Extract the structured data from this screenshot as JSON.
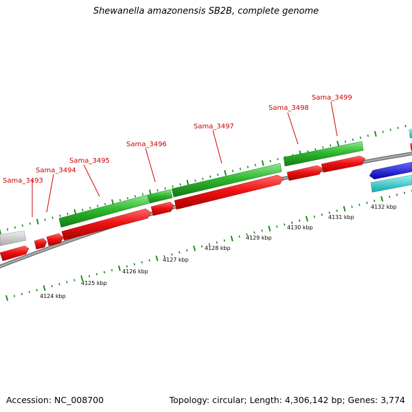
{
  "title": "Shewanella amazonensis SB2B, complete genome",
  "footer": {
    "accession": "Accession: NC_008700",
    "summary": "Topology: circular; Length: 4,306,142 bp; Genes: 3,774"
  },
  "colors": {
    "gc_tick": "#1a8a1a",
    "backbone": "#8a8a8a",
    "label_red": "#cc0000",
    "gene_red": "#ee1111",
    "gene_green": "#2fb82f",
    "gene_grey": "#c8c8c8",
    "gene_blue": "#1a1ae0",
    "gene_cyan": "#22d0d0"
  },
  "genes": [
    {
      "name": "Sama_3493"
    },
    {
      "name": "Sama_3494"
    },
    {
      "name": "Sama_3495"
    },
    {
      "name": "Sama_3496"
    },
    {
      "name": "Sama_3497"
    },
    {
      "name": "Sama_3498"
    },
    {
      "name": "Sama_3499"
    }
  ],
  "kbp_labels": [
    "4124 kbp",
    "4125 kbp",
    "4126 kbp",
    "4127 kbp",
    "4128 kbp",
    "4129 kbp",
    "4130 kbp",
    "4131 kbp",
    "4132 kbp"
  ]
}
